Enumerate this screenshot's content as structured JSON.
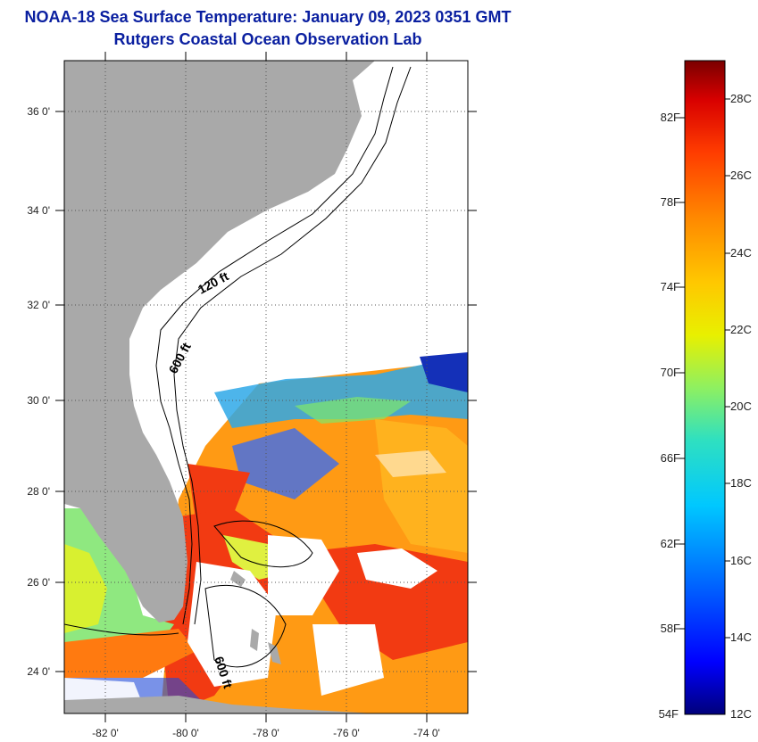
{
  "header": {
    "title": "NOAA-18 Sea Surface Temperature:  January 09, 2023 0351 GMT",
    "subtitle": "Rutgers Coastal Ocean Observation Lab"
  },
  "map": {
    "lat_labels": [
      "36 0'",
      "34 0'",
      "32 0'",
      "30 0'",
      "28 0'",
      "26 0'",
      "24 0'"
    ],
    "lon_labels": [
      "-82 0'",
      "-80 0'",
      "-78 0'",
      "-76 0'",
      "-74 0'"
    ],
    "lat_range": [
      23,
      37
    ],
    "lon_range": [
      -83,
      -73
    ],
    "isobath_labels": [
      "120 ft",
      "600 ft",
      "600 ft"
    ],
    "colors": {
      "land": "#a9a9a9",
      "cloud": "#ffffff",
      "graticule": "#555555"
    }
  },
  "colorbar": {
    "fahrenheit_labels": [
      "82F",
      "78F",
      "74F",
      "70F",
      "66F",
      "62F",
      "58F",
      "54F"
    ],
    "celsius_labels": [
      "28C",
      "26C",
      "24C",
      "22C",
      "20C",
      "18C",
      "16C",
      "14C",
      "12C"
    ],
    "range_c": [
      12,
      29
    ],
    "colormap": [
      "#00007a",
      "#0000ff",
      "#0066ff",
      "#00c8ff",
      "#2fe0c0",
      "#8ff060",
      "#e8f000",
      "#ffc800",
      "#ff8800",
      "#ff3c00",
      "#d80000",
      "#7a0000"
    ]
  }
}
